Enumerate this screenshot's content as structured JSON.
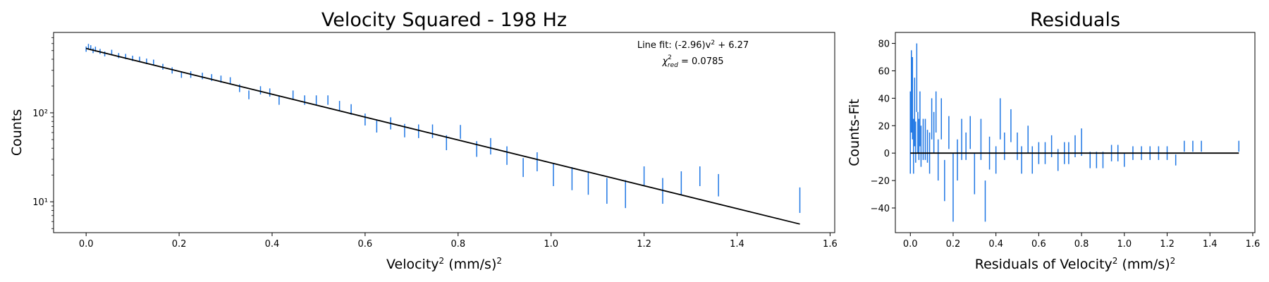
{
  "figure": {
    "left_title": "Velocity Squared - 198 Hz",
    "right_title": "Residuals"
  },
  "chart_data": [
    {
      "type": "scatter",
      "title": "Velocity Squared - 198 Hz",
      "xlabel": "Velocity² (mm/s)²",
      "ylabel": "Counts",
      "xlim": [
        -0.07,
        1.61
      ],
      "ylim": [
        4.5,
        800
      ],
      "yscale": "log",
      "grid": false,
      "legend": "none",
      "xticks": [
        0.0,
        0.2,
        0.4,
        0.6,
        0.8,
        1.0,
        1.2,
        1.4,
        1.6
      ],
      "xtick_labels": [
        "0.0",
        "0.2",
        "0.4",
        "0.6",
        "0.8",
        "1.0",
        "1.2",
        "1.4",
        "1.6"
      ],
      "yticks": [
        10,
        100
      ],
      "ytick_labels": [
        "10¹",
        "10²"
      ],
      "annotations": [
        "Line fit: (-2.96)v² + 6.27",
        "χ²red = 0.0785"
      ],
      "fit": {
        "slope": -2.96,
        "intercept": 6.27,
        "x_range": [
          0.0,
          1.535
        ]
      },
      "series": [
        {
          "name": "",
          "color": "#1f77e4",
          "x": [
            0.0,
            0.005,
            0.01,
            0.015,
            0.02,
            0.03,
            0.04,
            0.055,
            0.07,
            0.085,
            0.1,
            0.115,
            0.13,
            0.145,
            0.165,
            0.185,
            0.205,
            0.225,
            0.25,
            0.27,
            0.29,
            0.31,
            0.33,
            0.35,
            0.375,
            0.395,
            0.415,
            0.445,
            0.47,
            0.495,
            0.52,
            0.545,
            0.57,
            0.6,
            0.625,
            0.655,
            0.685,
            0.715,
            0.745,
            0.775,
            0.805,
            0.84,
            0.87,
            0.905,
            0.94,
            0.97,
            1.005,
            1.045,
            1.08,
            1.12,
            1.16,
            1.2,
            1.24,
            1.28,
            1.32,
            1.36,
            1.535
          ],
          "y": [
            520,
            560,
            540,
            500,
            520,
            490,
            460,
            480,
            440,
            430,
            410,
            400,
            380,
            370,
            330,
            300,
            270,
            270,
            260,
            250,
            240,
            230,
            190,
            160,
            180,
            170,
            140,
            160,
            140,
            140,
            140,
            120,
            110,
            85,
            72,
            77,
            64,
            63,
            63,
            47,
            62,
            40,
            43,
            34,
            25,
            29,
            21,
            19,
            17,
            14,
            13,
            20,
            14,
            17,
            20,
            16,
            11
          ],
          "y_err": [
            35,
            35,
            35,
            32,
            33,
            32,
            30,
            31,
            29,
            29,
            28,
            27,
            27,
            26,
            25,
            24,
            23,
            23,
            22,
            22,
            22,
            21,
            19,
            18,
            19,
            18,
            17,
            18,
            17,
            17,
            17,
            16,
            15,
            13,
            12,
            12,
            11,
            11,
            11,
            9,
            11,
            8,
            9,
            8,
            6,
            7,
            6,
            5.5,
            5,
            4.5,
            4.5,
            5,
            4.5,
            5,
            5,
            4.5,
            3.5
          ]
        }
      ]
    },
    {
      "type": "scatter",
      "title": "Residuals",
      "xlabel": "Residuals of Velocity² (mm/s)²",
      "ylabel": "Counts-Fit",
      "xlim": [
        -0.07,
        1.61
      ],
      "ylim": [
        -58,
        88
      ],
      "grid": false,
      "legend": "none",
      "xticks": [
        0.0,
        0.2,
        0.4,
        0.6,
        0.8,
        1.0,
        1.2,
        1.4,
        1.6
      ],
      "xtick_labels": [
        "0.0",
        "0.2",
        "0.4",
        "0.6",
        "0.8",
        "1.0",
        "1.2",
        "1.4",
        "1.6"
      ],
      "yticks": [
        -40,
        -20,
        0,
        20,
        40,
        60,
        80
      ],
      "ytick_labels": [
        "−40",
        "−20",
        "0",
        "20",
        "40",
        "60",
        "80"
      ],
      "zero_line": {
        "x_range": [
          0.0,
          1.535
        ]
      },
      "series": [
        {
          "name": "",
          "color": "#1f77e4",
          "x": [
            0.0,
            0.005,
            0.01,
            0.015,
            0.02,
            0.025,
            0.03,
            0.035,
            0.04,
            0.045,
            0.05,
            0.06,
            0.07,
            0.08,
            0.09,
            0.1,
            0.11,
            0.12,
            0.13,
            0.145,
            0.16,
            0.18,
            0.2,
            0.22,
            0.24,
            0.26,
            0.28,
            0.3,
            0.33,
            0.35,
            0.37,
            0.4,
            0.42,
            0.44,
            0.47,
            0.5,
            0.52,
            0.55,
            0.57,
            0.6,
            0.63,
            0.66,
            0.69,
            0.72,
            0.74,
            0.77,
            0.8,
            0.84,
            0.87,
            0.9,
            0.94,
            0.97,
            1.0,
            1.04,
            1.08,
            1.12,
            1.16,
            1.2,
            1.24,
            1.28,
            1.32,
            1.36,
            1.535
          ],
          "y": [
            15,
            45,
            40,
            5,
            30,
            8,
            55,
            15,
            10,
            25,
            5,
            10,
            10,
            5,
            0,
            25,
            15,
            30,
            -5,
            25,
            -20,
            15,
            -25,
            -5,
            10,
            5,
            15,
            -15,
            10,
            -35,
            0,
            -5,
            25,
            5,
            20,
            5,
            -5,
            10,
            -5,
            0,
            0,
            5,
            -5,
            0,
            0,
            5,
            8,
            -5,
            -5,
            -5,
            0,
            0,
            -5,
            0,
            0,
            0,
            0,
            0,
            -5,
            5,
            5,
            5,
            5
          ],
          "y_err": [
            30,
            30,
            30,
            20,
            25,
            15,
            25,
            15,
            15,
            20,
            15,
            15,
            15,
            12,
            15,
            15,
            15,
            15,
            15,
            15,
            15,
            12,
            25,
            15,
            15,
            10,
            12,
            15,
            15,
            15,
            12,
            10,
            15,
            10,
            12,
            10,
            10,
            10,
            10,
            8,
            8,
            8,
            8,
            8,
            8,
            8,
            10,
            6,
            6,
            6,
            6,
            6,
            5,
            5,
            5,
            5,
            5,
            5,
            4,
            4,
            4,
            4,
            4
          ]
        }
      ]
    }
  ]
}
